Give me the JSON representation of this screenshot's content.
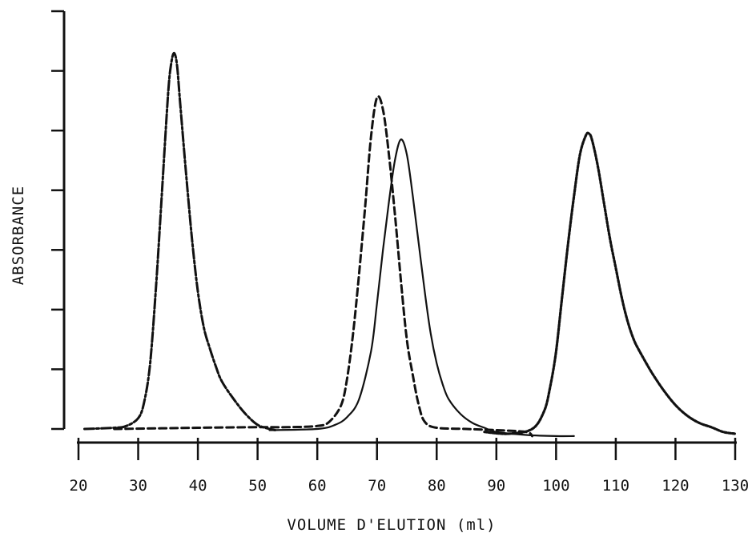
{
  "chart_data": {
    "type": "line",
    "title": "",
    "xlabel": "VOLUME D'ELUTION (ml)",
    "ylabel": "ABSORBANCE",
    "xlim": [
      20,
      130
    ],
    "ylim": [
      0,
      7
    ],
    "x_ticks": [
      20,
      30,
      40,
      50,
      60,
      70,
      80,
      90,
      100,
      110,
      120,
      130
    ],
    "x_tick_labels": [
      "20",
      "30",
      "40",
      "50",
      "60",
      "70",
      "80",
      "90",
      "100",
      "110",
      "120",
      "130"
    ],
    "y_ticks": [
      0,
      1,
      2,
      3,
      4,
      5,
      6,
      7
    ],
    "y_tick_labels": [],
    "grid": false,
    "legend": "none",
    "series": [
      {
        "style": "dash-dot",
        "x": [
          21,
          26,
          28,
          30,
          31,
          32,
          33,
          34,
          35,
          35.5,
          36,
          36.5,
          37,
          38,
          39,
          40,
          41,
          42,
          43,
          44,
          46,
          48,
          50,
          52,
          53
        ],
        "y": [
          0.0,
          0.02,
          0.05,
          0.18,
          0.45,
          1.1,
          2.4,
          4.0,
          5.6,
          6.1,
          6.3,
          6.1,
          5.5,
          4.3,
          3.2,
          2.3,
          1.7,
          1.35,
          1.05,
          0.8,
          0.5,
          0.25,
          0.07,
          0.0,
          -0.02
        ]
      },
      {
        "style": "dashed",
        "x": [
          26,
          40,
          50,
          55,
          60,
          62,
          64,
          65,
          66,
          67,
          68,
          69,
          70,
          71,
          72,
          73,
          74,
          75,
          76,
          77,
          78,
          80,
          85,
          90,
          95,
          96
        ],
        "y": [
          0.0,
          0.02,
          0.03,
          0.03,
          0.05,
          0.12,
          0.4,
          0.85,
          1.6,
          2.6,
          3.7,
          4.9,
          5.55,
          5.35,
          4.6,
          3.6,
          2.5,
          1.5,
          0.9,
          0.4,
          0.12,
          0.02,
          0.0,
          -0.02,
          -0.05,
          -0.12
        ]
      },
      {
        "style": "solid",
        "x": [
          52,
          60,
          63,
          65,
          67,
          69,
          70,
          71,
          72,
          73,
          74,
          75,
          76,
          77,
          78,
          79,
          80,
          81,
          82,
          84,
          86,
          88,
          90,
          95,
          100,
          103
        ],
        "y": [
          -0.02,
          0.0,
          0.07,
          0.2,
          0.5,
          1.3,
          2.1,
          3.0,
          3.8,
          4.5,
          4.85,
          4.6,
          3.9,
          3.1,
          2.3,
          1.6,
          1.1,
          0.75,
          0.5,
          0.25,
          0.1,
          0.02,
          -0.05,
          -0.1,
          -0.12,
          -0.12
        ]
      },
      {
        "style": "dotted",
        "x": [
          88,
          92,
          96,
          98,
          99,
          100,
          101,
          102,
          103,
          104,
          105,
          105.5,
          106,
          107,
          108,
          109,
          110,
          111,
          112,
          113,
          114,
          116,
          118,
          120,
          122,
          124,
          126,
          128,
          130
        ],
        "y": [
          -0.05,
          -0.08,
          0.0,
          0.3,
          0.7,
          1.3,
          2.2,
          3.1,
          3.9,
          4.6,
          4.92,
          4.95,
          4.85,
          4.4,
          3.8,
          3.2,
          2.7,
          2.2,
          1.8,
          1.5,
          1.3,
          0.95,
          0.65,
          0.4,
          0.22,
          0.1,
          0.03,
          -0.05,
          -0.08
        ]
      }
    ]
  }
}
